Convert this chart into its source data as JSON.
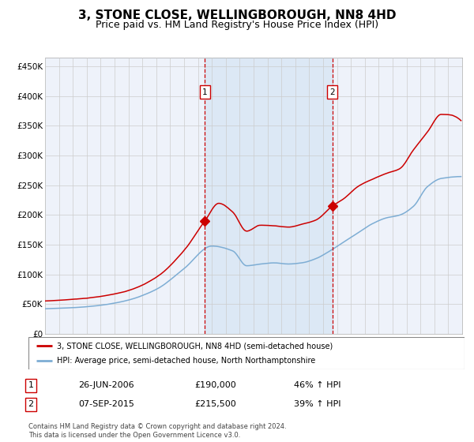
{
  "title": "3, STONE CLOSE, WELLINGBOROUGH, NN8 4HD",
  "subtitle": "Price paid vs. HM Land Registry's House Price Index (HPI)",
  "title_fontsize": 11,
  "subtitle_fontsize": 9,
  "yticks": [
    0,
    50000,
    100000,
    150000,
    200000,
    250000,
    300000,
    350000,
    400000,
    450000
  ],
  "ytick_labels": [
    "£0",
    "£50K",
    "£100K",
    "£150K",
    "£200K",
    "£250K",
    "£300K",
    "£350K",
    "£400K",
    "£450K"
  ],
  "background_color": "#ffffff",
  "grid_color": "#cccccc",
  "plot_bg_color": "#eef2fa",
  "hpi_line_color": "#7dadd4",
  "price_line_color": "#cc0000",
  "vline_color": "#cc0000",
  "shade_color": "#dce8f5",
  "marker_color": "#cc0000",
  "transaction1_x": 2006.5,
  "transaction1_y": 190000,
  "transaction2_x": 2015.67,
  "transaction2_y": 215500,
  "legend_line1": "3, STONE CLOSE, WELLINGBOROUGH, NN8 4HD (semi-detached house)",
  "legend_line2": "HPI: Average price, semi-detached house, North Northamptonshire",
  "table_row1": [
    "1",
    "26-JUN-2006",
    "£190,000",
    "46% ↑ HPI"
  ],
  "table_row2": [
    "2",
    "07-SEP-2015",
    "£215,500",
    "39% ↑ HPI"
  ],
  "footnote": "Contains HM Land Registry data © Crown copyright and database right 2024.\nThis data is licensed under the Open Government Licence v3.0.",
  "xmin": 1995,
  "xmax": 2025,
  "ymin": 0,
  "ymax": 465000
}
